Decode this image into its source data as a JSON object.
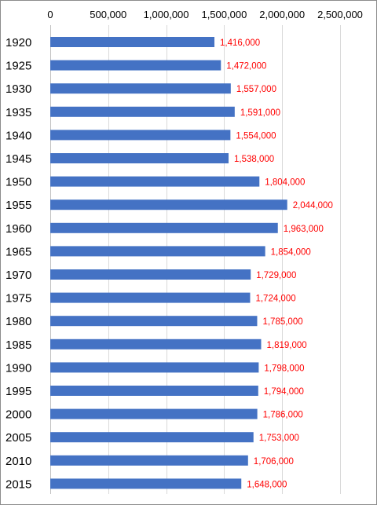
{
  "chart_data": {
    "type": "bar",
    "orientation": "horizontal",
    "title": "",
    "xlabel": "",
    "ylabel": "",
    "categories": [
      "1920",
      "1925",
      "1930",
      "1935",
      "1940",
      "1945",
      "1950",
      "1955",
      "1960",
      "1965",
      "1970",
      "1975",
      "1980",
      "1985",
      "1990",
      "1995",
      "2000",
      "2005",
      "2010",
      "2015"
    ],
    "values": [
      1416000,
      1472000,
      1557000,
      1591000,
      1554000,
      1538000,
      1804000,
      2044000,
      1963000,
      1854000,
      1729000,
      1724000,
      1785000,
      1819000,
      1798000,
      1794000,
      1786000,
      1753000,
      1706000,
      1648000
    ],
    "data_labels": [
      "1,416,000",
      "1,472,000",
      "1,557,000",
      "1,591,000",
      "1,554,000",
      "1,538,000",
      "1,804,000",
      "2,044,000",
      "1,963,000",
      "1,854,000",
      "1,729,000",
      "1,724,000",
      "1,785,000",
      "1,819,000",
      "1,798,000",
      "1,794,000",
      "1,786,000",
      "1,753,000",
      "1,706,000",
      "1,648,000"
    ],
    "xlim": [
      0,
      2500000
    ],
    "x_ticks": [
      0,
      500000,
      1000000,
      1500000,
      2000000,
      2500000
    ],
    "x_tick_labels": [
      "0",
      "500,000",
      "1,000,000",
      "1,500,000",
      "2,000,000",
      "2,500,000"
    ],
    "x_axis_position": "top",
    "grid": true,
    "legend": "none",
    "bar_color": "#4472c4",
    "label_color": "#ff0000"
  }
}
